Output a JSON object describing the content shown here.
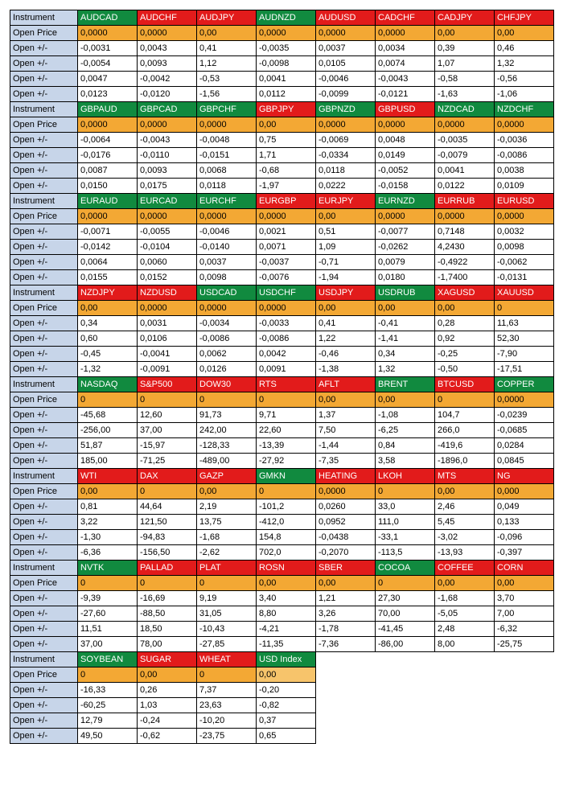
{
  "label_instrument": "Instrument",
  "label_open_price": "Open Price",
  "label_open_pm": "Open +/-",
  "colors": {
    "label_blue": "#c7d5e9",
    "hdr_green": "#118a3f",
    "hdr_red": "#e21b1b",
    "orange": "#f3a834",
    "orange_light": "#f7c46b",
    "white": "#ffffff",
    "black": "#000000"
  },
  "blocks": [
    {
      "instruments": [
        {
          "name": "AUDCAD",
          "hdr": "green"
        },
        {
          "name": "AUDCHF",
          "hdr": "red"
        },
        {
          "name": "AUDJPY",
          "hdr": "red"
        },
        {
          "name": "AUDNZD",
          "hdr": "green"
        },
        {
          "name": "AUDUSD",
          "hdr": "red"
        },
        {
          "name": "CADCHF",
          "hdr": "red"
        },
        {
          "name": "CADJPY",
          "hdr": "red"
        },
        {
          "name": "CHFJPY",
          "hdr": "red"
        }
      ],
      "open_price": [
        "0,0000",
        "0,0000",
        "0,00",
        "0,0000",
        "0,0000",
        "0,0000",
        "0,00",
        "0,00"
      ],
      "open_price_bg": [
        "orange",
        "orange",
        "orange",
        "orange",
        "orange",
        "orange",
        "orange",
        "orange"
      ],
      "pm": [
        [
          "-0,0031",
          "0,0043",
          "0,41",
          "-0,0035",
          "0,0037",
          "0,0034",
          "0,39",
          "0,46"
        ],
        [
          "-0,0054",
          "0,0093",
          "1,12",
          "-0,0098",
          "0,0105",
          "0,0074",
          "1,07",
          "1,32"
        ],
        [
          "0,0047",
          "-0,0042",
          "-0,53",
          "0,0041",
          "-0,0046",
          "-0,0043",
          "-0,58",
          "-0,56"
        ],
        [
          "0,0123",
          "-0,0120",
          "-1,56",
          "0,0112",
          "-0,0099",
          "-0,0121",
          "-1,63",
          "-1,06"
        ]
      ]
    },
    {
      "instruments": [
        {
          "name": "GBPAUD",
          "hdr": "green"
        },
        {
          "name": "GBPCAD",
          "hdr": "green"
        },
        {
          "name": "GBPCHF",
          "hdr": "green"
        },
        {
          "name": "GBPJPY",
          "hdr": "red"
        },
        {
          "name": "GBPNZD",
          "hdr": "green"
        },
        {
          "name": "GBPUSD",
          "hdr": "red"
        },
        {
          "name": "NZDCAD",
          "hdr": "green"
        },
        {
          "name": "NZDCHF",
          "hdr": "green"
        }
      ],
      "open_price": [
        "0,0000",
        "0,0000",
        "0,0000",
        "0,00",
        "0,0000",
        "0,0000",
        "0,0000",
        "0,0000"
      ],
      "open_price_bg": [
        "orange",
        "orange",
        "orange",
        "orange",
        "orange",
        "orange",
        "orange",
        "orange"
      ],
      "pm": [
        [
          "-0,0064",
          "-0,0043",
          "-0,0048",
          "0,75",
          "-0,0069",
          "0,0048",
          "-0,0035",
          "-0,0036"
        ],
        [
          "-0,0176",
          "-0,0110",
          "-0,0151",
          "1,71",
          "-0,0334",
          "0,0149",
          "-0,0079",
          "-0,0086"
        ],
        [
          "0,0087",
          "0,0093",
          "0,0068",
          "-0,68",
          "0,0118",
          "-0,0052",
          "0,0041",
          "0,0038"
        ],
        [
          "0,0150",
          "0,0175",
          "0,0118",
          "-1,97",
          "0,0222",
          "-0,0158",
          "0,0122",
          "0,0109"
        ]
      ]
    },
    {
      "instruments": [
        {
          "name": "EURAUD",
          "hdr": "green"
        },
        {
          "name": "EURCAD",
          "hdr": "green"
        },
        {
          "name": "EURCHF",
          "hdr": "green"
        },
        {
          "name": "EURGBP",
          "hdr": "red"
        },
        {
          "name": "EURJPY",
          "hdr": "red"
        },
        {
          "name": "EURNZD",
          "hdr": "green"
        },
        {
          "name": "EURRUB",
          "hdr": "red"
        },
        {
          "name": "EURUSD",
          "hdr": "red"
        }
      ],
      "open_price": [
        "0,0000",
        "0,0000",
        "0,0000",
        "0,0000",
        "0,00",
        "0,0000",
        "0,0000",
        "0,0000"
      ],
      "open_price_bg": [
        "orange",
        "orange",
        "orange",
        "orange",
        "orange",
        "orange",
        "orange",
        "orange"
      ],
      "pm": [
        [
          "-0,0071",
          "-0,0055",
          "-0,0046",
          "0,0021",
          "0,51",
          "-0,0077",
          "0,7148",
          "0,0032"
        ],
        [
          "-0,0142",
          "-0,0104",
          "-0,0140",
          "0,0071",
          "1,09",
          "-0,0262",
          "4,2430",
          "0,0098"
        ],
        [
          "0,0064",
          "0,0060",
          "0,0037",
          "-0,0037",
          "-0,71",
          "0,0079",
          "-0,4922",
          "-0,0062"
        ],
        [
          "0,0155",
          "0,0152",
          "0,0098",
          "-0,0076",
          "-1,94",
          "0,0180",
          "-1,7400",
          "-0,0131"
        ]
      ]
    },
    {
      "instruments": [
        {
          "name": "NZDJPY",
          "hdr": "red"
        },
        {
          "name": "NZDUSD",
          "hdr": "red"
        },
        {
          "name": "USDCAD",
          "hdr": "green"
        },
        {
          "name": "USDCHF",
          "hdr": "green"
        },
        {
          "name": "USDJPY",
          "hdr": "red"
        },
        {
          "name": "USDRUB",
          "hdr": "green"
        },
        {
          "name": "XAGUSD",
          "hdr": "red"
        },
        {
          "name": "XAUUSD",
          "hdr": "red"
        }
      ],
      "open_price": [
        "0,00",
        "0,0000",
        "0,0000",
        "0,0000",
        "0,00",
        "0,00",
        "0,00",
        "0"
      ],
      "open_price_bg": [
        "orange",
        "orange",
        "orange",
        "orange",
        "orange",
        "orange",
        "orange",
        "orange"
      ],
      "pm": [
        [
          "0,34",
          "0,0031",
          "-0,0034",
          "-0,0033",
          "0,41",
          "-0,41",
          "0,28",
          "11,63"
        ],
        [
          "0,60",
          "0,0106",
          "-0,0086",
          "-0,0086",
          "1,22",
          "-1,41",
          "0,92",
          "52,30"
        ],
        [
          "-0,45",
          "-0,0041",
          "0,0062",
          "0,0042",
          "-0,46",
          "0,34",
          "-0,25",
          "-7,90"
        ],
        [
          "-1,32",
          "-0,0091",
          "0,0126",
          "0,0091",
          "-1,38",
          "1,32",
          "-0,50",
          "-17,51"
        ]
      ]
    },
    {
      "instruments": [
        {
          "name": "NASDAQ",
          "hdr": "green"
        },
        {
          "name": "S&P500",
          "hdr": "red"
        },
        {
          "name": "DOW30",
          "hdr": "red"
        },
        {
          "name": "RTS",
          "hdr": "red"
        },
        {
          "name": "AFLT",
          "hdr": "red"
        },
        {
          "name": "BRENT",
          "hdr": "green"
        },
        {
          "name": "BTCUSD",
          "hdr": "red"
        },
        {
          "name": "COPPER",
          "hdr": "green"
        }
      ],
      "open_price": [
        "0",
        "0",
        "0",
        "0",
        "0,00",
        "0,00",
        "0",
        "0,0000"
      ],
      "open_price_bg": [
        "orange",
        "orange",
        "orange",
        "orange",
        "orange",
        "orange",
        "orange",
        "orange"
      ],
      "pm": [
        [
          "-45,68",
          "12,60",
          "91,73",
          "9,71",
          "1,37",
          "-1,08",
          "104,7",
          "-0,0239"
        ],
        [
          "-256,00",
          "37,00",
          "242,00",
          "22,60",
          "7,50",
          "-6,25",
          "266,0",
          "-0,0685"
        ],
        [
          "51,87",
          "-15,97",
          "-128,33",
          "-13,39",
          "-1,44",
          "0,84",
          "-419,6",
          "0,0284"
        ],
        [
          "185,00",
          "-71,25",
          "-489,00",
          "-27,92",
          "-7,35",
          "3,58",
          "-1896,0",
          "0,0845"
        ]
      ]
    },
    {
      "instruments": [
        {
          "name": "WTI",
          "hdr": "red"
        },
        {
          "name": "DAX",
          "hdr": "red"
        },
        {
          "name": "GAZP",
          "hdr": "red"
        },
        {
          "name": "GMKN",
          "hdr": "green"
        },
        {
          "name": "HEATING",
          "hdr": "red"
        },
        {
          "name": "LKOH",
          "hdr": "red"
        },
        {
          "name": "MTS",
          "hdr": "red"
        },
        {
          "name": "NG",
          "hdr": "red"
        }
      ],
      "open_price": [
        "0,00",
        "0",
        "0,00",
        "0",
        "0,0000",
        "0",
        "0,00",
        "0,000"
      ],
      "open_price_bg": [
        "orange",
        "orange",
        "orange",
        "orange",
        "orange",
        "orange",
        "orange",
        "orange"
      ],
      "pm": [
        [
          "0,81",
          "44,64",
          "2,19",
          "-101,2",
          "0,0260",
          "33,0",
          "2,46",
          "0,049"
        ],
        [
          "3,22",
          "121,50",
          "13,75",
          "-412,0",
          "0,0952",
          "111,0",
          "5,45",
          "0,133"
        ],
        [
          "-1,30",
          "-94,83",
          "-1,68",
          "154,8",
          "-0,0438",
          "-33,1",
          "-3,02",
          "-0,096"
        ],
        [
          "-6,36",
          "-156,50",
          "-2,62",
          "702,0",
          "-0,2070",
          "-113,5",
          "-13,93",
          "-0,397"
        ]
      ]
    },
    {
      "instruments": [
        {
          "name": "NVTK",
          "hdr": "green"
        },
        {
          "name": "PALLAD",
          "hdr": "red"
        },
        {
          "name": "PLAT",
          "hdr": "red"
        },
        {
          "name": "ROSN",
          "hdr": "red"
        },
        {
          "name": "SBER",
          "hdr": "red"
        },
        {
          "name": "COCOA",
          "hdr": "green"
        },
        {
          "name": "COFFEE",
          "hdr": "red"
        },
        {
          "name": "CORN",
          "hdr": "red"
        }
      ],
      "open_price": [
        "0",
        "0",
        "0",
        "0,00",
        "0,00",
        "0",
        "0,00",
        "0,00"
      ],
      "open_price_bg": [
        "orange",
        "orange",
        "orange",
        "orange",
        "orange",
        "orange",
        "orange",
        "orange"
      ],
      "pm": [
        [
          "-9,39",
          "-16,69",
          "9,19",
          "3,40",
          "1,21",
          "27,30",
          "-1,68",
          "3,70"
        ],
        [
          "-27,60",
          "-88,50",
          "31,05",
          "8,80",
          "3,26",
          "70,00",
          "-5,05",
          "7,00"
        ],
        [
          "11,51",
          "18,50",
          "-10,43",
          "-4,21",
          "-1,78",
          "-41,45",
          "2,48",
          "-6,32"
        ],
        [
          "37,00",
          "78,00",
          "-27,85",
          "-11,35",
          "-7,36",
          "-86,00",
          "8,00",
          "-25,75"
        ]
      ]
    },
    {
      "instruments": [
        {
          "name": "SOYBEAN",
          "hdr": "green"
        },
        {
          "name": "SUGAR",
          "hdr": "red"
        },
        {
          "name": "WHEAT",
          "hdr": "red"
        },
        {
          "name": "USD Index",
          "hdr": "green"
        }
      ],
      "open_price": [
        "0",
        "0,00",
        "0",
        "0,00"
      ],
      "open_price_bg": [
        "orange",
        "orange",
        "orange",
        "orange_light"
      ],
      "pm": [
        [
          "-16,33",
          "0,26",
          "7,37",
          "-0,20"
        ],
        [
          "-60,25",
          "1,03",
          "23,63",
          "-0,82"
        ],
        [
          "12,79",
          "-0,24",
          "-10,20",
          "0,37"
        ],
        [
          "49,50",
          "-0,62",
          "-23,75",
          "0,65"
        ]
      ]
    }
  ]
}
